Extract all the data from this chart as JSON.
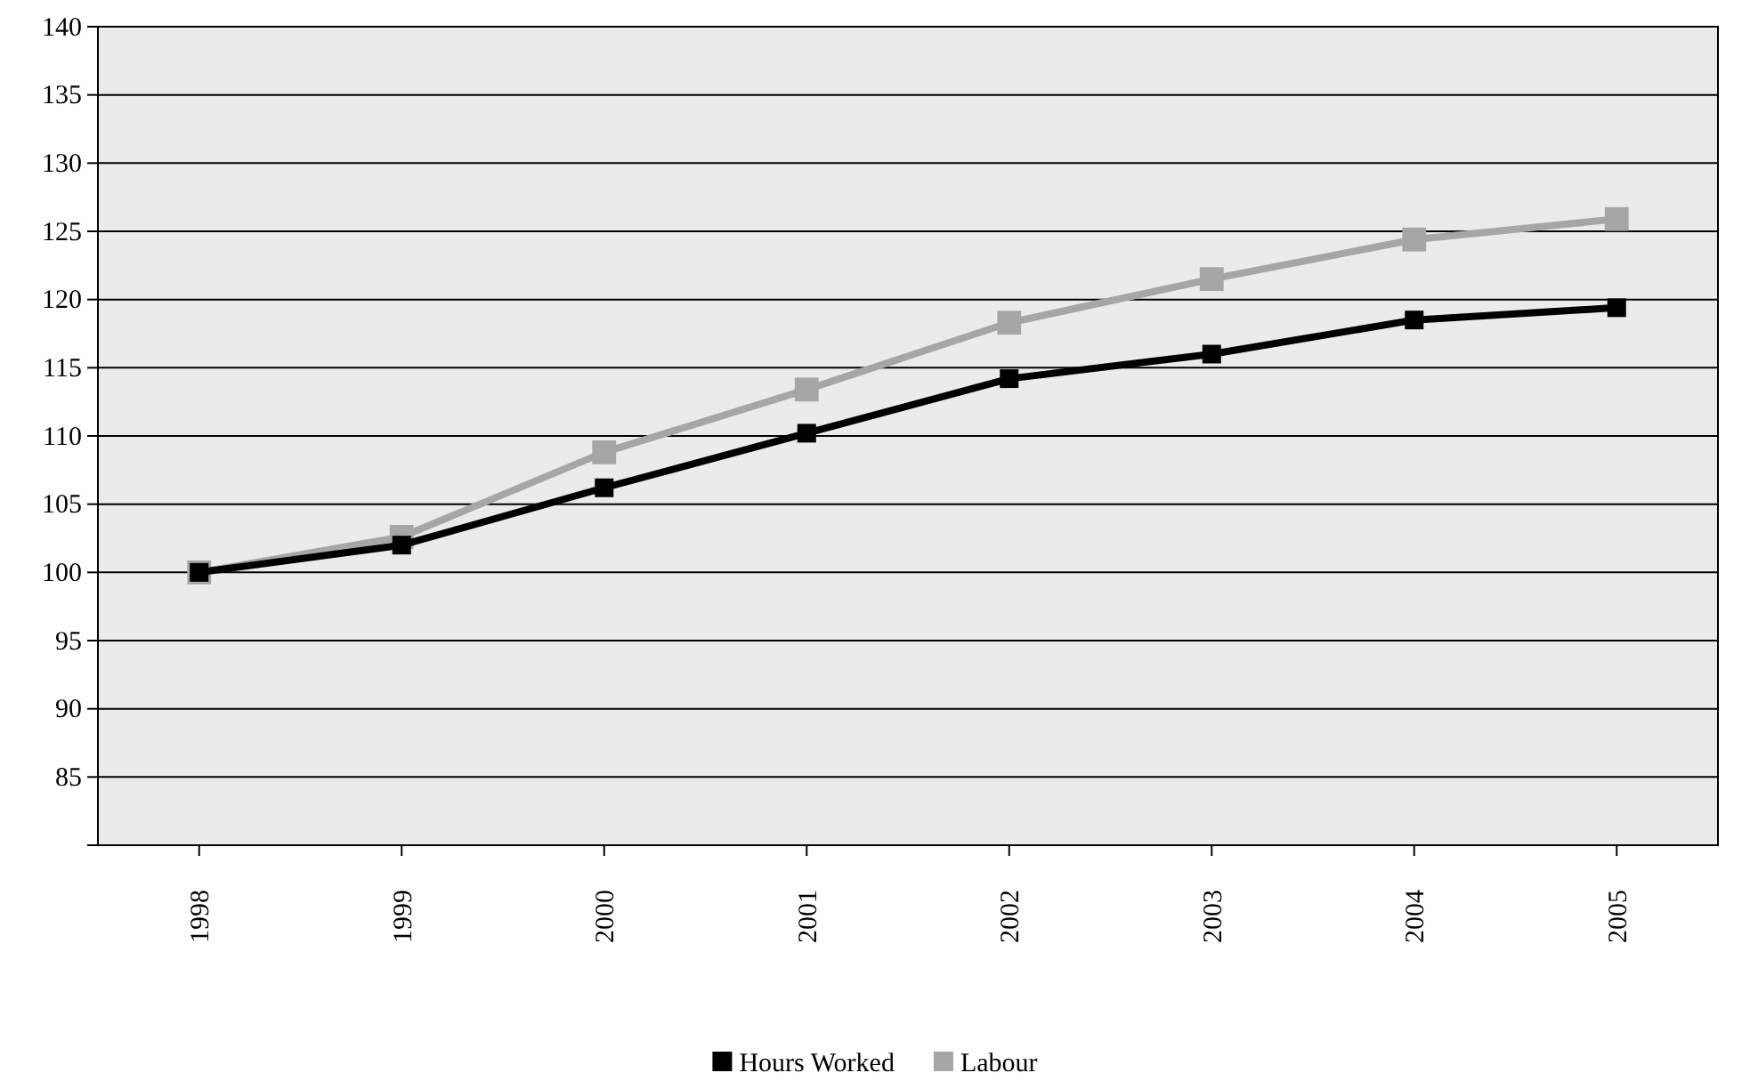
{
  "chart_data": {
    "type": "line",
    "categories": [
      "1998",
      "1999",
      "2000",
      "2001",
      "2002",
      "2003",
      "2004",
      "2005"
    ],
    "series": [
      {
        "name": "Hours Worked",
        "color": "#000000",
        "values": [
          100,
          102,
          106.2,
          110.2,
          114.2,
          116,
          118.5,
          119.4
        ]
      },
      {
        "name": "Labour",
        "color": "#a6a6a6",
        "values": [
          100,
          102.6,
          108.8,
          113.4,
          118.3,
          121.5,
          124.4,
          125.9
        ]
      }
    ],
    "ylim": [
      80,
      140
    ],
    "yticks": [
      85,
      90,
      95,
      100,
      105,
      110,
      115,
      120,
      125,
      130,
      135,
      140
    ],
    "grid": "y",
    "legend": "bottom",
    "marker": "square",
    "line_style": "solid"
  }
}
